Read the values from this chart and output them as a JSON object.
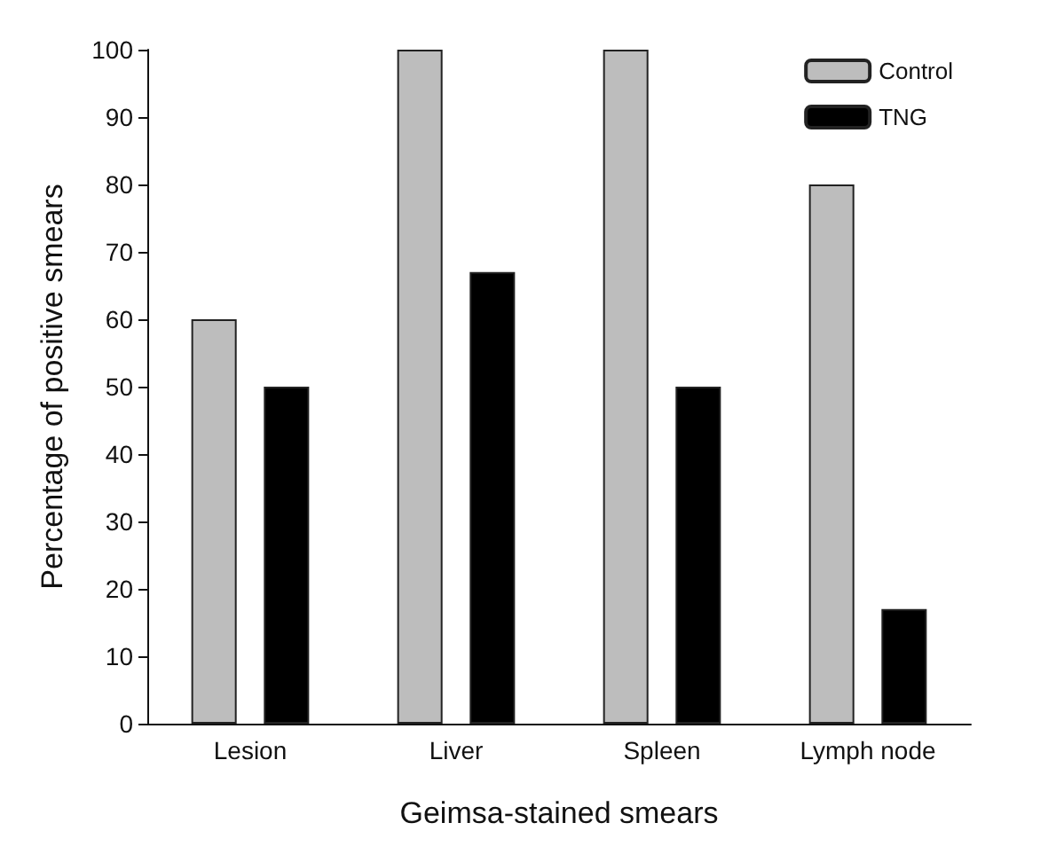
{
  "chart_data": {
    "type": "bar",
    "xlabel": "Geimsa-stained smears",
    "ylabel": "Percentage of positive smears",
    "categories": [
      "Lesion",
      "Liver",
      "Spleen",
      "Lymph node"
    ],
    "series": [
      {
        "name": "Control",
        "color": "#bdbdbd",
        "values": [
          60,
          100,
          100,
          80
        ]
      },
      {
        "name": "TNG",
        "color": "#000000",
        "values": [
          50,
          67,
          50,
          17
        ]
      }
    ],
    "ylim": [
      0,
      100
    ],
    "yticks": [
      0,
      10,
      20,
      30,
      40,
      50,
      60,
      70,
      80,
      90,
      100
    ],
    "grid": false,
    "legend": "top right"
  }
}
